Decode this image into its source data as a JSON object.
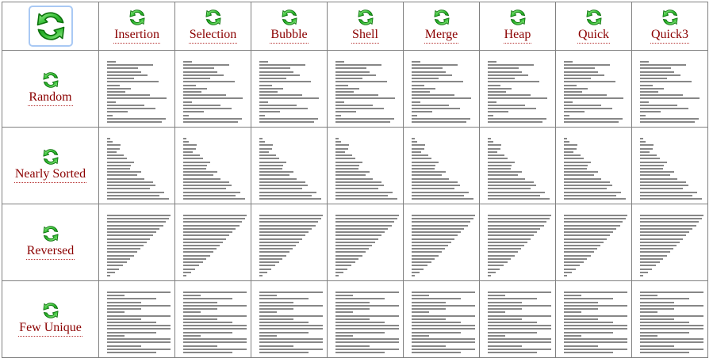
{
  "table": {
    "corner_button": {
      "icon": "refresh-icon"
    },
    "columns": [
      {
        "key": "insertion",
        "label": "Insertion"
      },
      {
        "key": "selection",
        "label": "Selection"
      },
      {
        "key": "bubble",
        "label": "Bubble"
      },
      {
        "key": "shell",
        "label": "Shell"
      },
      {
        "key": "merge",
        "label": "Merge"
      },
      {
        "key": "heap",
        "label": "Heap"
      },
      {
        "key": "quick",
        "label": "Quick"
      },
      {
        "key": "quick3",
        "label": "Quick3"
      }
    ],
    "rows": [
      {
        "key": "random",
        "label": "Random",
        "bars": [
          0.13,
          0.71,
          0.47,
          0.52,
          0.62,
          0.42,
          0.79,
          0.19,
          0.37,
          0.28,
          0.66,
          0.92,
          0.14,
          0.57,
          0.74,
          0.32,
          0.08,
          0.9,
          0.84
        ]
      },
      {
        "key": "nearly-sorted",
        "label": "Nearly Sorted",
        "bars": [
          0.05,
          0.09,
          0.21,
          0.19,
          0.15,
          0.25,
          0.3,
          0.42,
          0.37,
          0.35,
          0.52,
          0.46,
          0.57,
          0.71,
          0.74,
          0.66,
          0.88,
          0.81,
          0.95
        ]
      },
      {
        "key": "reversed",
        "label": "Reversed",
        "bars": [
          0.97,
          0.95,
          0.9,
          0.86,
          0.81,
          0.76,
          0.71,
          0.66,
          0.61,
          0.56,
          0.51,
          0.46,
          0.41,
          0.35,
          0.3,
          0.24,
          0.18,
          0.12,
          0.05
        ]
      },
      {
        "key": "few-unique",
        "label": "Few Unique",
        "bars": [
          0.97,
          0.27,
          0.76,
          0.52,
          0.97,
          0.52,
          0.27,
          0.97,
          0.52,
          0.76,
          0.97,
          0.97,
          0.76,
          0.27,
          0.97,
          0.97,
          0.52,
          0.97,
          0.76
        ]
      }
    ]
  },
  "chart_data": {
    "type": "bar",
    "orientation": "horizontal",
    "note": "Each grid cell shows the same per-row array as gray horizontal bars (values are fractions of max length ~82px).",
    "series": [
      {
        "name": "Random",
        "values": [
          0.13,
          0.71,
          0.47,
          0.52,
          0.62,
          0.42,
          0.79,
          0.19,
          0.37,
          0.28,
          0.66,
          0.92,
          0.14,
          0.57,
          0.74,
          0.32,
          0.08,
          0.9,
          0.84
        ]
      },
      {
        "name": "Nearly Sorted",
        "values": [
          0.05,
          0.09,
          0.21,
          0.19,
          0.15,
          0.25,
          0.3,
          0.42,
          0.37,
          0.35,
          0.52,
          0.46,
          0.57,
          0.71,
          0.74,
          0.66,
          0.88,
          0.81,
          0.95
        ]
      },
      {
        "name": "Reversed",
        "values": [
          0.97,
          0.95,
          0.9,
          0.86,
          0.81,
          0.76,
          0.71,
          0.66,
          0.61,
          0.56,
          0.51,
          0.46,
          0.41,
          0.35,
          0.3,
          0.24,
          0.18,
          0.12,
          0.05
        ]
      },
      {
        "name": "Few Unique",
        "values": [
          0.97,
          0.27,
          0.76,
          0.52,
          0.97,
          0.52,
          0.27,
          0.97,
          0.52,
          0.76,
          0.97,
          0.97,
          0.76,
          0.27,
          0.97,
          0.97,
          0.52,
          0.97,
          0.76
        ]
      }
    ]
  },
  "colors": {
    "bar": "#878787",
    "grid_border": "#808080",
    "label_text": "#8b0000",
    "label_underline": "#b73333",
    "focus_border": "#a9c9f4",
    "icon_dark_green": "#0c720c",
    "icon_light_green": "#9ef08e",
    "icon_mid_green": "#2db52d"
  }
}
